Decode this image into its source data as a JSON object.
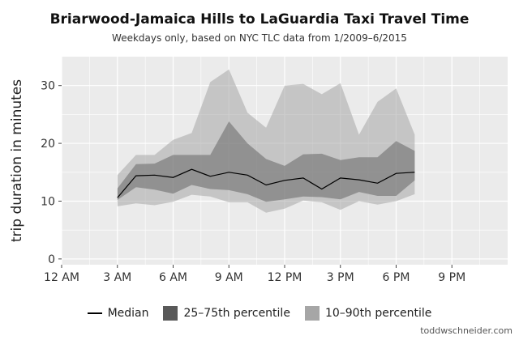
{
  "title": "Briarwood-Jamaica Hills to LaGuardia Taxi Travel Time",
  "subtitle": "Weekdays only, based on NYC TLC data from 1/2009–6/2015",
  "credit": "toddwschneider.com",
  "colors": {
    "panel": "#ebebeb",
    "grid": "#ffffff",
    "band_10_90": "#c4c4c4",
    "band_25_75": "#999999",
    "median": "#000000"
  },
  "chart_data": {
    "type": "area",
    "x_unit": "hour of day",
    "xlim": [
      0,
      24
    ],
    "ylim": [
      -1,
      35
    ],
    "x_ticks": [
      {
        "x": 0,
        "label": "12 AM"
      },
      {
        "x": 3,
        "label": "3 AM"
      },
      {
        "x": 6,
        "label": "6 AM"
      },
      {
        "x": 9,
        "label": "9 AM"
      },
      {
        "x": 12,
        "label": "12 PM"
      },
      {
        "x": 15,
        "label": "3 PM"
      },
      {
        "x": 18,
        "label": "6 PM"
      },
      {
        "x": 21,
        "label": "9 PM"
      }
    ],
    "y_ticks": [
      0,
      10,
      20,
      30
    ],
    "xlabel": "",
    "ylabel": "trip duration in minutes",
    "x": [
      3,
      4,
      5,
      6,
      7,
      8,
      9,
      10,
      11,
      12,
      13,
      14,
      15,
      16,
      17,
      18,
      19
    ],
    "series": [
      {
        "name": "Median",
        "values": [
          10.6,
          14.4,
          14.5,
          14.1,
          15.5,
          14.3,
          15.0,
          14.5,
          12.8,
          13.6,
          14.0,
          12.1,
          14.0,
          13.7,
          13.1,
          14.8,
          15.0
        ]
      },
      {
        "name": "25th percentile",
        "values": [
          10.2,
          12.4,
          12.0,
          11.3,
          12.8,
          12.1,
          11.9,
          11.2,
          9.9,
          10.3,
          10.8,
          10.7,
          10.3,
          11.6,
          10.9,
          10.9,
          13.6
        ]
      },
      {
        "name": "75th percentile",
        "values": [
          12.2,
          16.4,
          16.5,
          18.0,
          18.0,
          18.0,
          23.8,
          20.0,
          17.3,
          16.1,
          18.1,
          18.2,
          17.1,
          17.6,
          17.6,
          20.4,
          18.7
        ]
      },
      {
        "name": "10th percentile",
        "values": [
          9.1,
          9.6,
          9.3,
          9.9,
          11.1,
          10.8,
          9.8,
          9.8,
          8.0,
          8.7,
          10.1,
          9.8,
          8.5,
          10.0,
          9.4,
          10.0,
          11.2
        ]
      },
      {
        "name": "90th percentile",
        "values": [
          14.5,
          18.0,
          18.0,
          20.6,
          21.8,
          30.6,
          32.8,
          25.3,
          22.7,
          30.0,
          30.3,
          28.5,
          30.4,
          21.5,
          27.2,
          29.5,
          21.5
        ]
      }
    ]
  },
  "legend": [
    {
      "label": "Median",
      "kind": "line",
      "color": "#000000"
    },
    {
      "label": "25–75th percentile",
      "kind": "box",
      "color": "#595959"
    },
    {
      "label": "10–90th percentile",
      "kind": "box",
      "color": "#a6a6a6"
    }
  ]
}
